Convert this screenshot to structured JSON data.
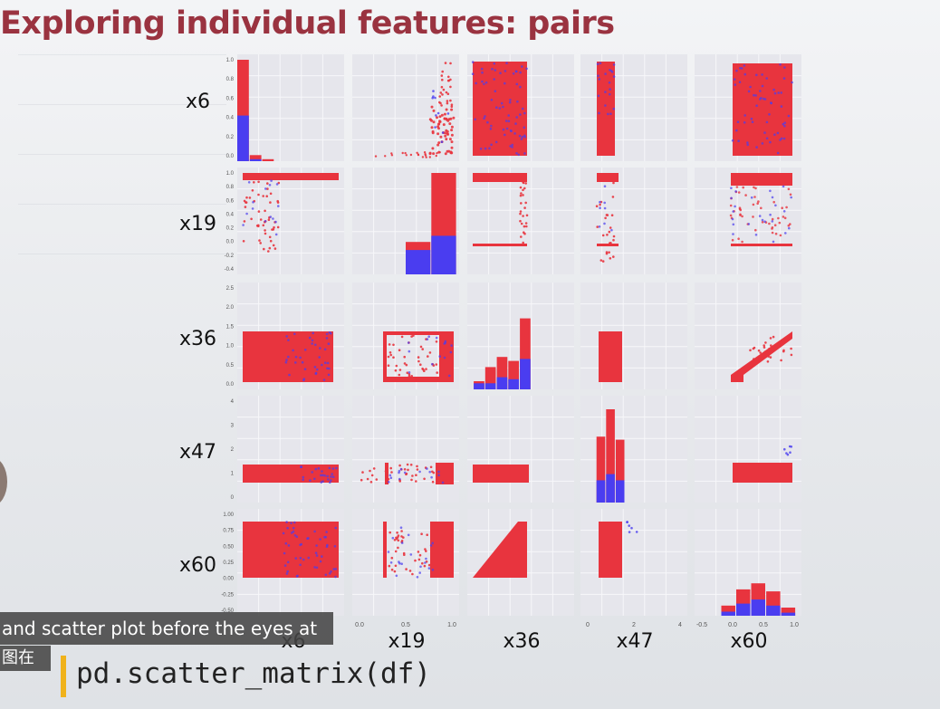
{
  "slide": {
    "title": "Exploring individual features: pairs",
    "caption": "and scatter plot before the eyes at",
    "caption_zh": "图在",
    "code": "pd.scatter_matrix(df)"
  },
  "colors": {
    "title": "#9a3340",
    "class_a": "#e8343e",
    "class_b": "#4a3df0",
    "panel_bg": "#e6e6ec",
    "accent": "#f0b21b"
  },
  "chart_data": {
    "type": "scatter",
    "title": "",
    "variables": [
      "x6",
      "x19",
      "x36",
      "x47",
      "x60"
    ],
    "series": [
      {
        "name": "",
        "color": "#e8343e"
      },
      {
        "name": "",
        "color": "#4a3df0"
      }
    ],
    "diagonal": "histogram",
    "row_ticks": [
      [
        "1.0",
        "0.8",
        "0.6",
        "0.4",
        "0.2",
        "0.0"
      ],
      [
        "1.0",
        "0.8",
        "0.6",
        "0.4",
        "0.2",
        "0.0",
        "-0.2",
        "-0.4"
      ],
      [
        "2.5",
        "2.0",
        "1.5",
        "1.0",
        "0.5",
        "0.0"
      ],
      [
        "4",
        "3",
        "2",
        "1",
        "0"
      ],
      [
        "1.00",
        "0.75",
        "0.50",
        "0.25",
        "0.00",
        "-0.25",
        "-0.50"
      ]
    ],
    "col_ticks": [
      [],
      [
        "0.0",
        "0.5",
        "1.0"
      ],
      [],
      [
        "0",
        "2",
        "4"
      ],
      [
        "-0.5",
        "0.0",
        "0.5",
        "1.0"
      ]
    ],
    "histograms": {
      "x6": {
        "bins": [
          0.0,
          0.1,
          0.2
        ],
        "red": [
          1.0,
          0.06,
          0.02
        ],
        "blue": [
          0.45,
          0.02,
          0.0
        ]
      },
      "x19": {
        "bins": [
          -0.3,
          0.9
        ],
        "red": [
          0.32,
          1.0
        ],
        "blue": [
          0.24,
          0.38
        ]
      },
      "x36": {
        "bins": [
          0.0,
          0.3,
          0.6,
          0.9,
          1.2
        ],
        "red": [
          0.08,
          0.22,
          0.32,
          0.28,
          0.7
        ],
        "blue": [
          0.06,
          0.06,
          0.12,
          0.1,
          0.3
        ]
      },
      "x47": {
        "bins": [
          0.0,
          0.5,
          1.0
        ],
        "red": [
          0.65,
          0.92,
          0.62
        ],
        "blue": [
          0.22,
          0.28,
          0.22
        ]
      },
      "x60": {
        "bins": [
          -0.3,
          0.0,
          0.3,
          0.6,
          0.9
        ],
        "red": [
          0.1,
          0.26,
          0.32,
          0.24,
          0.08
        ],
        "blue": [
          0.04,
          0.12,
          0.16,
          0.1,
          0.03
        ]
      }
    }
  }
}
